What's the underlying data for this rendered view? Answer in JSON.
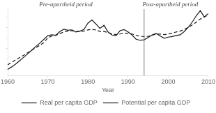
{
  "chart_data": {
    "type": "line",
    "xlabel": "Year",
    "x": [
      1960,
      1961,
      1962,
      1963,
      1964,
      1965,
      1966,
      1967,
      1968,
      1969,
      1970,
      1971,
      1972,
      1973,
      1974,
      1975,
      1976,
      1977,
      1978,
      1979,
      1980,
      1981,
      1982,
      1983,
      1984,
      1985,
      1986,
      1987,
      1988,
      1989,
      1990,
      1991,
      1992,
      1993,
      1994,
      1995,
      1996,
      1997,
      1998,
      1999,
      2000,
      2001,
      2002,
      2003,
      2004,
      2005,
      2006,
      2007,
      2008,
      2009,
      2010
    ],
    "series": [
      {
        "name": "Real per capita GDP",
        "color": "#1a1a1a",
        "line_style": "solid",
        "values": [
          3.0,
          3.12,
          3.26,
          3.42,
          3.58,
          3.75,
          3.92,
          4.1,
          4.26,
          4.44,
          4.62,
          4.66,
          4.64,
          4.82,
          4.93,
          4.88,
          4.9,
          4.8,
          4.84,
          4.92,
          5.22,
          5.38,
          5.18,
          4.97,
          5.12,
          4.8,
          4.65,
          4.62,
          4.86,
          4.91,
          4.8,
          4.65,
          4.45,
          4.4,
          4.42,
          4.53,
          4.66,
          4.73,
          4.61,
          4.5,
          4.55,
          4.58,
          4.63,
          4.66,
          4.82,
          5.02,
          5.28,
          5.58,
          5.82,
          5.52,
          5.68
        ]
      },
      {
        "name": "Potential per capita GDP",
        "color": "#1a1a1a",
        "line_style": "dashed",
        "values": [
          3.22,
          3.34,
          3.46,
          3.57,
          3.68,
          3.8,
          3.92,
          4.04,
          4.16,
          4.28,
          4.52,
          4.6,
          4.64,
          4.72,
          4.8,
          4.84,
          4.86,
          4.82,
          4.82,
          4.84,
          4.9,
          4.92,
          4.9,
          4.82,
          4.82,
          4.77,
          4.7,
          4.67,
          4.7,
          4.74,
          4.74,
          4.7,
          4.64,
          4.6,
          4.57,
          4.59,
          4.64,
          4.7,
          4.7,
          4.67,
          4.7,
          4.74,
          4.8,
          4.84,
          4.92,
          5.02,
          5.14,
          5.27,
          5.42,
          5.52,
          5.62
        ]
      }
    ],
    "xlim": [
      1960,
      2010
    ],
    "xticks": [
      1960,
      1970,
      1980,
      1990,
      2000,
      2010
    ],
    "ylim": [
      2.7,
      5.9
    ],
    "yticks": [
      3,
      3.5,
      4,
      4.5,
      5,
      5.5
    ],
    "tick_labels": "x",
    "grid": false,
    "legend": "bottom",
    "vline_x": 1994,
    "annotations": [
      {
        "text": "Pre-apartheid period"
      },
      {
        "text": "Post-apartheid period"
      }
    ]
  }
}
